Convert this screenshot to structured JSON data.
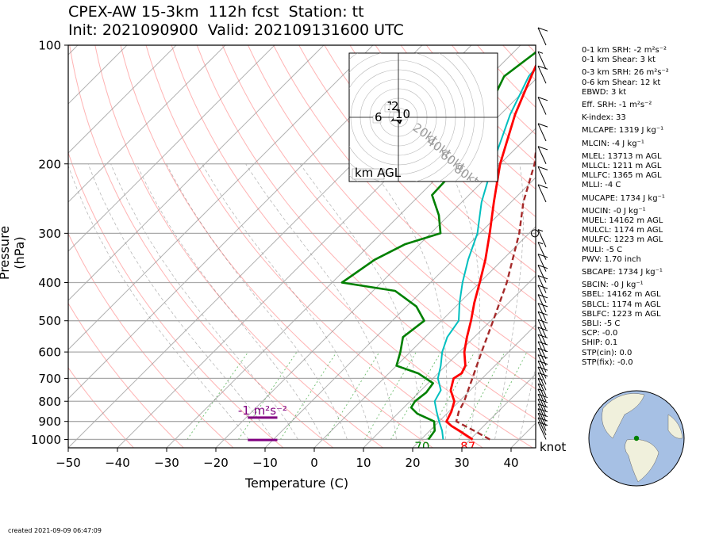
{
  "title": {
    "line1": "CPEX-AW 15-3km  112h fcst  Station: tt",
    "line2": "Init: 2021090900  Valid: 202109131600 UTC"
  },
  "footer": {
    "created": "created 2021-09-09 06:47:09"
  },
  "colors": {
    "temperature": "#ff0000",
    "dewpoint": "#008000",
    "wetbulb": "#00bfbf",
    "parcel": "#a52a2a",
    "srh_bar": "#800080",
    "dry_adiabat": "#ff9999",
    "moist_adiabat": "#4d4d4d",
    "mixing_ratio": "#2ca02c",
    "isotherm": "#808080",
    "globe_ocean": "#a6c0e4",
    "globe_land": "#f0f0dc"
  },
  "chart_data": {
    "type": "skew-t",
    "xlabel": "Temperature (C)",
    "ylabel": "Pressure (hPa)",
    "xlim": [
      -50,
      45
    ],
    "ylim": [
      1050,
      100
    ],
    "x_ticks": [
      "−50",
      "−40",
      "−30",
      "−20",
      "−10",
      "0",
      "10",
      "20",
      "30",
      "40"
    ],
    "y_ticks": [
      "100",
      "200",
      "300",
      "400",
      "500",
      "600",
      "700",
      "800",
      "900",
      "1000"
    ],
    "yscale": "log",
    "grid": true,
    "surface_labels": {
      "dewpoint_f": "70",
      "temperature_f": "87",
      "wind_units": "knot"
    },
    "series": [
      {
        "name": "temperature",
        "points": [
          [
            1000,
            30.5
          ],
          [
            950,
            26
          ],
          [
            925,
            23.5
          ],
          [
            900,
            21.5
          ],
          [
            850,
            20.5
          ],
          [
            800,
            19
          ],
          [
            750,
            16
          ],
          [
            700,
            14.2
          ],
          [
            680,
            14.8
          ],
          [
            650,
            14
          ],
          [
            600,
            11
          ],
          [
            550,
            8.5
          ],
          [
            500,
            6
          ],
          [
            450,
            3
          ],
          [
            400,
            0
          ],
          [
            350,
            -3.5
          ],
          [
            300,
            -8
          ],
          [
            250,
            -13.5
          ],
          [
            200,
            -20
          ],
          [
            150,
            -27
          ],
          [
            120,
            -31.5
          ],
          [
            100,
            -35
          ]
        ]
      },
      {
        "name": "dewpoint",
        "points": [
          [
            1000,
            21.5
          ],
          [
            950,
            21
          ],
          [
            925,
            20
          ],
          [
            900,
            19
          ],
          [
            860,
            14
          ],
          [
            830,
            11.5
          ],
          [
            800,
            11
          ],
          [
            760,
            11.5
          ],
          [
            720,
            11
          ],
          [
            680,
            6
          ],
          [
            650,
            0
          ],
          [
            600,
            -2
          ],
          [
            550,
            -4.5
          ],
          [
            500,
            -3.5
          ],
          [
            460,
            -8
          ],
          [
            420,
            -15.5
          ],
          [
            400,
            -28
          ],
          [
            350,
            -26
          ],
          [
            320,
            -23
          ],
          [
            300,
            -18
          ],
          [
            270,
            -22
          ],
          [
            240,
            -27.5
          ],
          [
            200,
            -28
          ],
          [
            170,
            -30.5
          ],
          [
            150,
            -33
          ],
          [
            120,
            -37
          ],
          [
            100,
            -35
          ]
        ]
      },
      {
        "name": "wetbulb",
        "points": [
          [
            1000,
            24.5
          ],
          [
            950,
            22.5
          ],
          [
            900,
            20
          ],
          [
            850,
            17.5
          ],
          [
            800,
            15
          ],
          [
            750,
            14
          ],
          [
            700,
            11
          ],
          [
            650,
            9
          ],
          [
            600,
            6.5
          ],
          [
            550,
            4.5
          ],
          [
            500,
            3.5
          ],
          [
            450,
            0
          ],
          [
            400,
            -3.5
          ],
          [
            350,
            -7
          ],
          [
            300,
            -10.5
          ],
          [
            250,
            -16
          ],
          [
            200,
            -21.5
          ],
          [
            150,
            -28
          ],
          [
            120,
            -32
          ],
          [
            100,
            -33
          ]
        ]
      },
      {
        "name": "parcel",
        "points": [
          [
            1000,
            34
          ],
          [
            950,
            29
          ],
          [
            900,
            23.5
          ],
          [
            850,
            22
          ],
          [
            800,
            21
          ],
          [
            700,
            18
          ],
          [
            600,
            14.5
          ],
          [
            500,
            10.5
          ],
          [
            400,
            5.5
          ],
          [
            300,
            -2
          ],
          [
            250,
            -7.5
          ],
          [
            200,
            -13
          ],
          [
            150,
            -22
          ],
          [
            120,
            -30
          ],
          [
            100,
            -36
          ]
        ]
      }
    ],
    "srh_bars": [
      {
        "label": "-1 m²s⁻²",
        "p": 880,
        "t_start": -13.5,
        "t_end": -7.5
      },
      {
        "label": "",
        "p": 1003,
        "t_start": -13.5,
        "t_end": -7.5
      }
    ],
    "hodograph": {
      "footer_label": "km AGL",
      "ring_labels": [
        "20kt",
        "40kt",
        "60kt",
        "80kt"
      ],
      "height_labels": [
        "1",
        "2",
        "6",
        "10"
      ],
      "trace_kt": [
        [
          -2,
          1
        ],
        [
          -3,
          -2
        ],
        [
          2,
          -2
        ],
        [
          1,
          -4
        ],
        [
          -2,
          -1
        ],
        [
          -4,
          -2
        ],
        [
          -2,
          1
        ]
      ]
    },
    "wind_barbs": [
      {
        "p": 1000,
        "speed_kt": 10
      },
      {
        "p": 975,
        "speed_kt": 10
      },
      {
        "p": 950,
        "speed_kt": 10
      },
      {
        "p": 925,
        "speed_kt": 10
      },
      {
        "p": 900,
        "speed_kt": 10
      },
      {
        "p": 875,
        "speed_kt": 10
      },
      {
        "p": 850,
        "speed_kt": 10
      },
      {
        "p": 825,
        "speed_kt": 5
      },
      {
        "p": 800,
        "speed_kt": 5
      },
      {
        "p": 775,
        "speed_kt": 5
      },
      {
        "p": 750,
        "speed_kt": 10
      },
      {
        "p": 725,
        "speed_kt": 10
      },
      {
        "p": 700,
        "speed_kt": 10
      },
      {
        "p": 675,
        "speed_kt": 10
      },
      {
        "p": 650,
        "speed_kt": 10
      },
      {
        "p": 625,
        "speed_kt": 10
      },
      {
        "p": 600,
        "speed_kt": 10
      },
      {
        "p": 575,
        "speed_kt": 10
      },
      {
        "p": 550,
        "speed_kt": 10
      },
      {
        "p": 525,
        "speed_kt": 10
      },
      {
        "p": 500,
        "speed_kt": 10
      },
      {
        "p": 475,
        "speed_kt": 10
      },
      {
        "p": 450,
        "speed_kt": 10
      },
      {
        "p": 425,
        "speed_kt": 10
      },
      {
        "p": 400,
        "speed_kt": 10
      },
      {
        "p": 375,
        "speed_kt": 10
      },
      {
        "p": 350,
        "speed_kt": 5
      },
      {
        "p": 325,
        "speed_kt": 5
      },
      {
        "p": 300,
        "speed_kt": 0
      },
      {
        "p": 250,
        "speed_kt": 10
      },
      {
        "p": 225,
        "speed_kt": 10
      },
      {
        "p": 200,
        "speed_kt": 10
      },
      {
        "p": 175,
        "speed_kt": 10
      },
      {
        "p": 150,
        "speed_kt": 10
      },
      {
        "p": 125,
        "speed_kt": 10
      },
      {
        "p": 115,
        "speed_kt": 5
      },
      {
        "p": 100,
        "speed_kt": 10
      }
    ],
    "indices": [
      "0-1 km SRH: -2 m²s⁻²",
      "0-1 km Shear: 3 kt",
      "0-3 km SRH: 26 m²s⁻²",
      "0-6 km Shear: 12 kt",
      "EBWD: 3 kt",
      "Eff. SRH: -1 m²s⁻²",
      "K-index: 33",
      "MLCAPE: 1319 J kg⁻¹",
      "MLCIN: -4 J kg⁻¹",
      "MLEL: 13713 m AGL",
      "MLLCL: 1211 m AGL",
      "MLLFC: 1365 m AGL",
      "MLLI: -4 C",
      "MUCAPE: 1734 J kg⁻¹",
      "MUCIN: -0 J kg⁻¹",
      "MUEL: 14162 m AGL",
      "MULCL: 1174 m AGL",
      "MULFC: 1223 m AGL",
      "MULI: -5 C",
      "PWV: 1.70 inch",
      "SBCAPE: 1734 J kg⁻¹",
      "SBCIN: -0 J kg⁻¹",
      "SBEL: 14162 m AGL",
      "SBLCL: 1174 m AGL",
      "SBLFC: 1223 m AGL",
      "SBLI: -5 C",
      "SCP: -0.0",
      "SHIP: 0.1",
      "STP(cin): 0.0",
      "STP(fix): -0.0"
    ]
  }
}
